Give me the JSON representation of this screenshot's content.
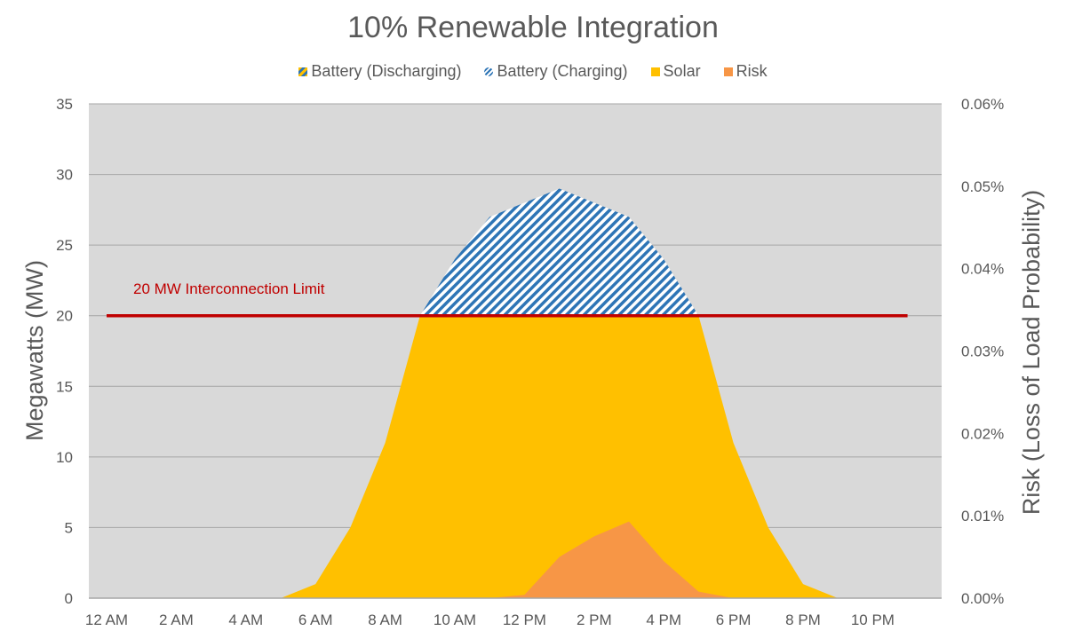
{
  "chart_data": {
    "type": "area",
    "title": "10% Renewable Integration",
    "ylabel": "Megawatts (MW)",
    "y2label": "Risk (Loss of Load Probability)",
    "ylim": [
      0,
      35
    ],
    "y_ticks": [
      0,
      5,
      10,
      15,
      20,
      25,
      30,
      35
    ],
    "y2lim": [
      0,
      0.06
    ],
    "y2_ticks": [
      "0.00%",
      "0.01%",
      "0.02%",
      "0.03%",
      "0.04%",
      "0.05%",
      "0.06%"
    ],
    "x_ticks": [
      {
        "hour": 0,
        "label": "12 AM"
      },
      {
        "hour": 2,
        "label": "2 AM"
      },
      {
        "hour": 4,
        "label": "4 AM"
      },
      {
        "hour": 6,
        "label": "6 AM"
      },
      {
        "hour": 8,
        "label": "8 AM"
      },
      {
        "hour": 10,
        "label": "10 AM"
      },
      {
        "hour": 12,
        "label": "12 PM"
      },
      {
        "hour": 14,
        "label": "2 PM"
      },
      {
        "hour": 16,
        "label": "4 PM"
      },
      {
        "hour": 18,
        "label": "6 PM"
      },
      {
        "hour": 20,
        "label": "8 PM"
      },
      {
        "hour": 22,
        "label": "10 PM"
      }
    ],
    "grid": true,
    "legend_position": "top",
    "legend": [
      {
        "name": "Battery (Discharging)",
        "color": "#2e75b6",
        "pattern": "striped-yellow"
      },
      {
        "name": "Battery (Charging)",
        "color": "#2e75b6",
        "pattern": "hatched"
      },
      {
        "name": "Solar",
        "color": "#ffc000"
      },
      {
        "name": "Risk",
        "color": "#f79646"
      }
    ],
    "x": [
      0,
      1,
      2,
      3,
      4,
      5,
      6,
      7,
      8,
      9,
      10,
      11,
      12,
      13,
      14,
      15,
      16,
      17,
      18,
      19,
      20,
      21,
      22,
      23
    ],
    "series": [
      {
        "name": "Solar",
        "axis": "left",
        "color": "#ffc000",
        "values": [
          0,
          0,
          0,
          0,
          0,
          0,
          1,
          5,
          11,
          20,
          20,
          20,
          20,
          20,
          20,
          20,
          20,
          20,
          11,
          5,
          1,
          0,
          0,
          0
        ]
      },
      {
        "name": "Battery (Charging)",
        "axis": "left",
        "color": "#2e75b6",
        "values": [
          0,
          0,
          0,
          0,
          0,
          0,
          0,
          0,
          0,
          0,
          4,
          7,
          8,
          9,
          8,
          7,
          4,
          0,
          0,
          0,
          0,
          0,
          0,
          0
        ]
      },
      {
        "name": "Risk",
        "axis": "right",
        "color": "#f79646",
        "values": [
          0,
          0,
          0,
          0,
          0,
          0,
          0,
          0,
          0,
          0,
          0,
          0,
          0.0004,
          0.005,
          0.0075,
          0.0093,
          0.0045,
          0.0008,
          0,
          0,
          0,
          0,
          0,
          0
        ]
      }
    ],
    "limit_line": {
      "label": "20 MW Interconnection Limit",
      "value": 20,
      "color": "#c00000"
    }
  }
}
